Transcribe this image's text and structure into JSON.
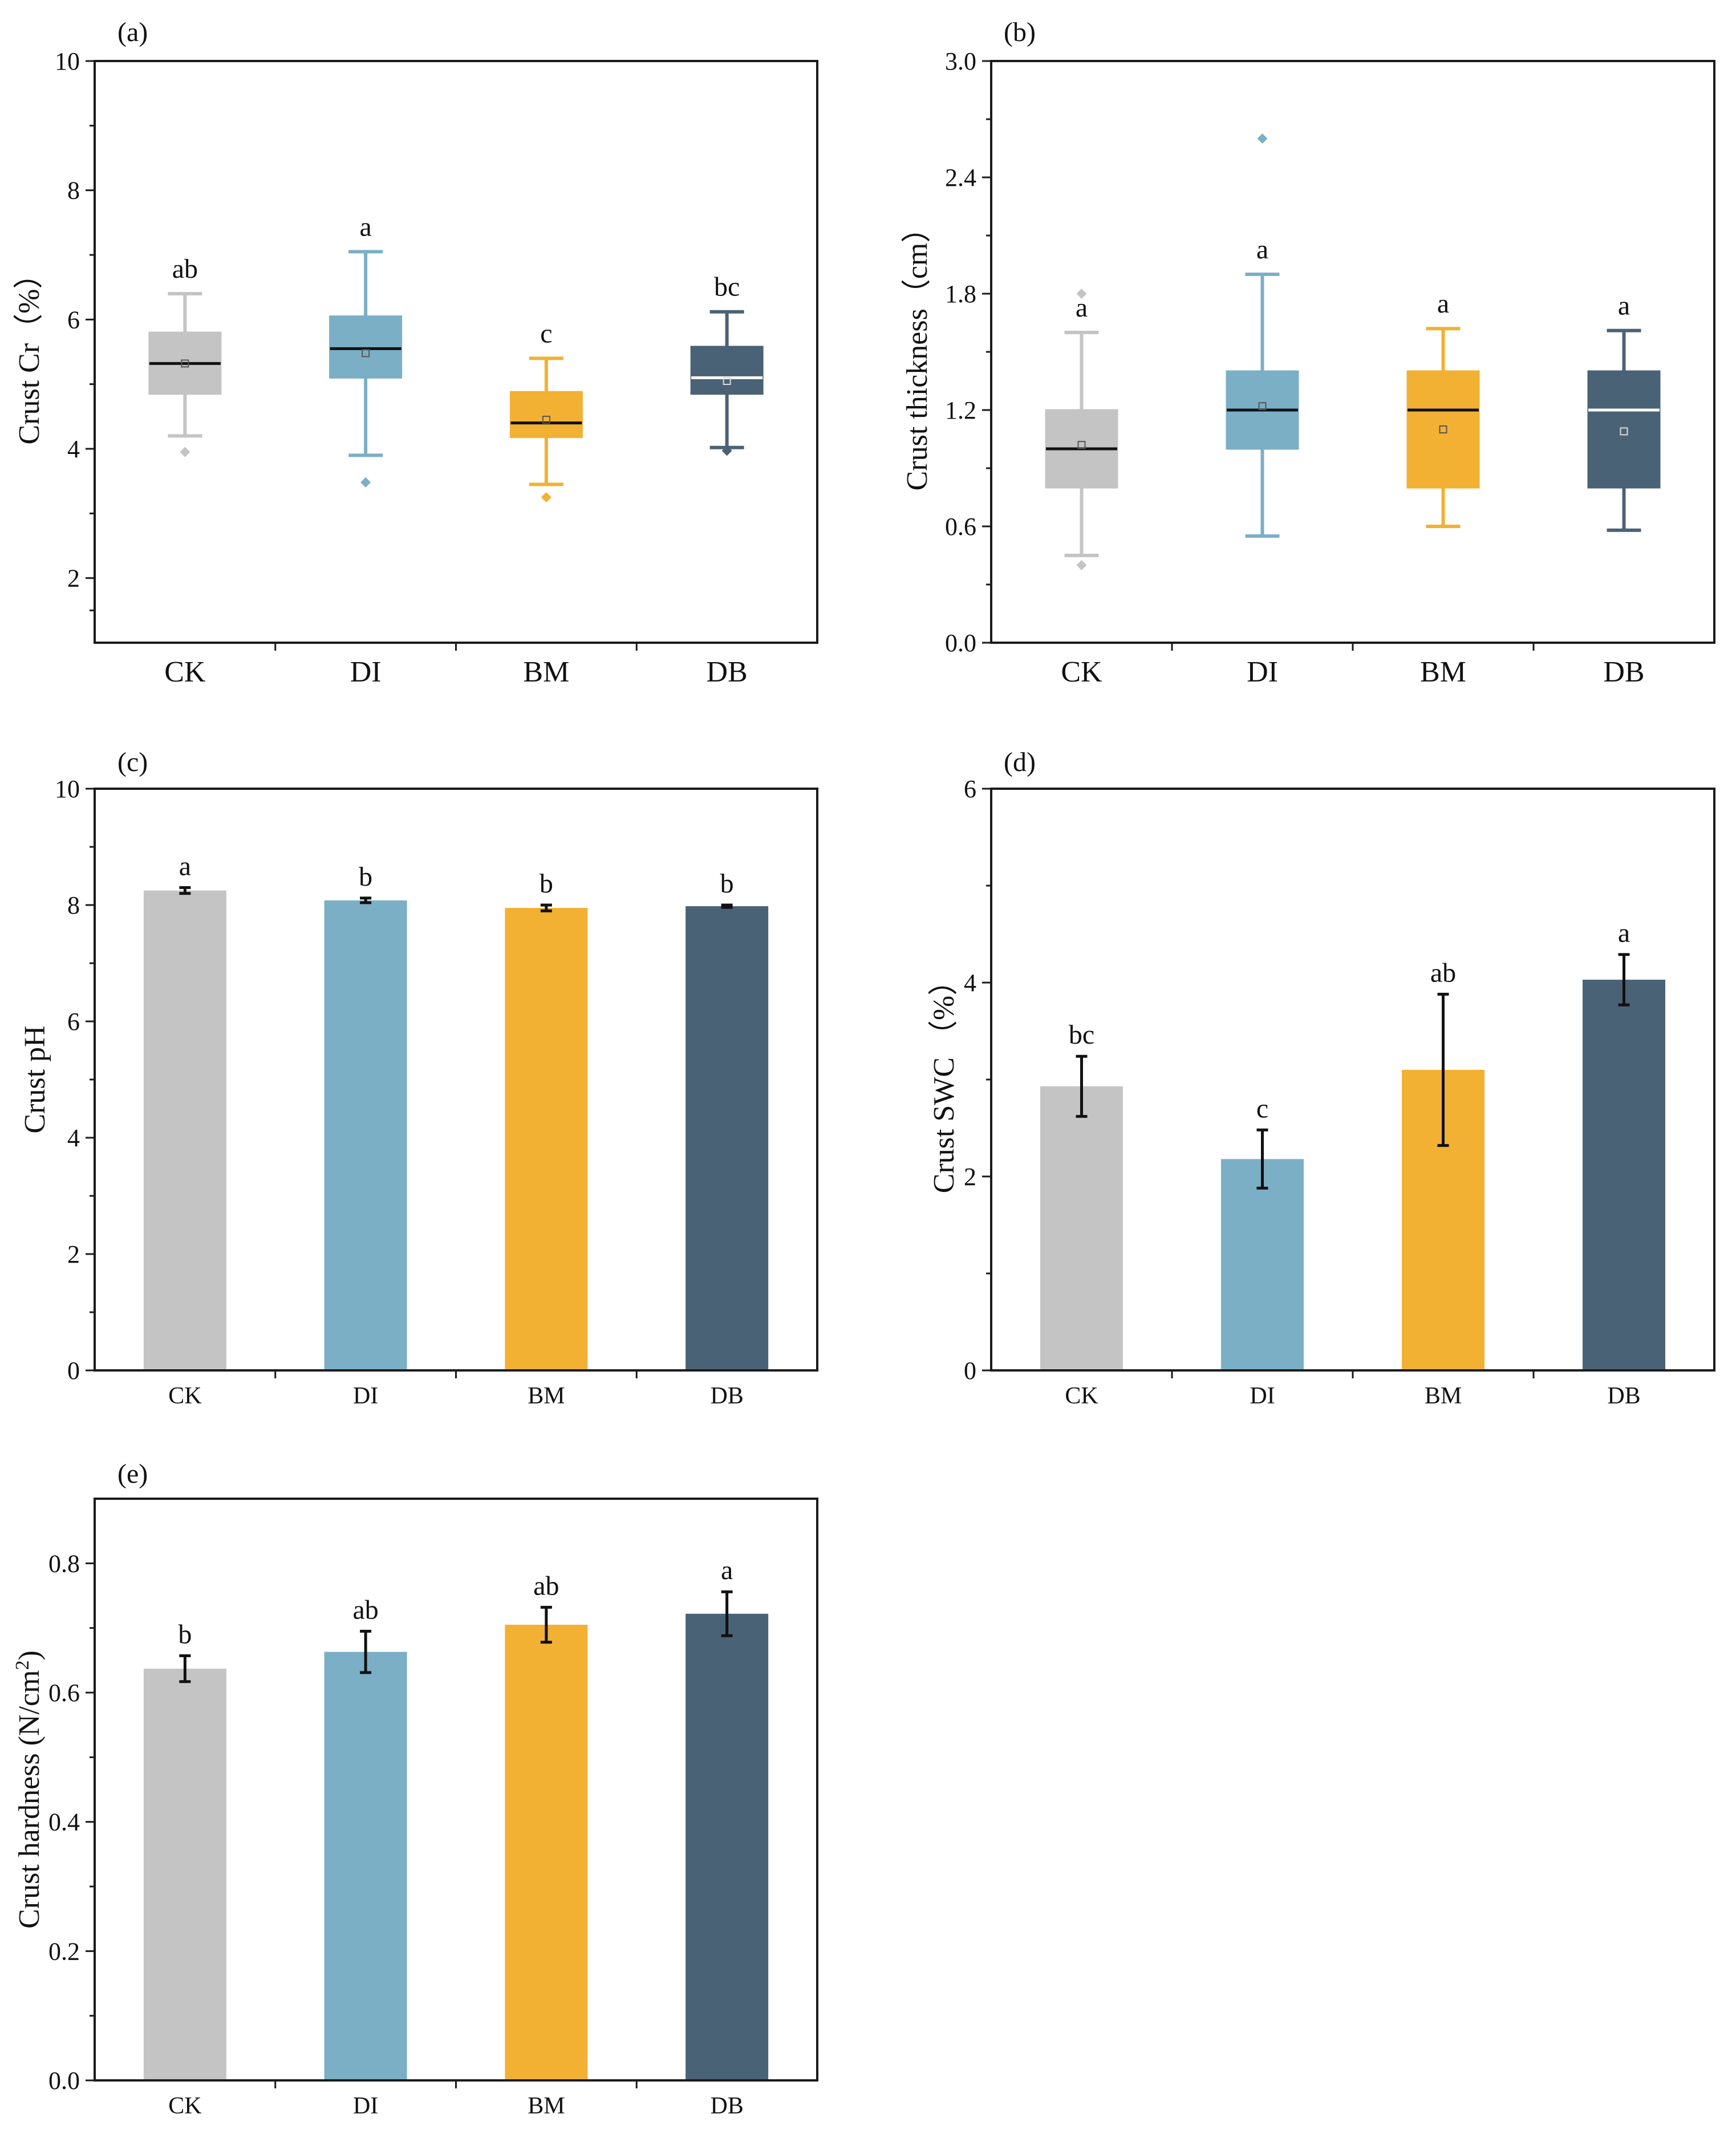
{
  "figure": {
    "colors": {
      "CK": "#c4c4c4",
      "DI": "#7bafc6",
      "BM": "#f2b133",
      "DB": "#4a6275",
      "frame": "#1a1a1a",
      "whisker_dark": "#111111"
    }
  },
  "chart_data": [
    {
      "panel": "(a)",
      "type": "box",
      "ylabel": "Crust Cr（%）",
      "ylim": [
        1,
        10
      ],
      "yticks": [
        2,
        4,
        6,
        8,
        10
      ],
      "categories": [
        "CK",
        "DI",
        "BM",
        "DB"
      ],
      "boxes": [
        {
          "category": "CK",
          "whisker_low": 4.2,
          "q1": 4.85,
          "median": 5.32,
          "q3": 5.8,
          "whisker_high": 6.4,
          "mean": 5.32,
          "outliers": [
            3.95
          ],
          "sig": "ab"
        },
        {
          "category": "DI",
          "whisker_low": 3.9,
          "q1": 5.1,
          "median": 5.55,
          "q3": 6.05,
          "whisker_high": 7.05,
          "mean": 5.48,
          "outliers": [
            3.48
          ],
          "sig": "a"
        },
        {
          "category": "BM",
          "whisker_low": 3.45,
          "q1": 4.18,
          "median": 4.4,
          "q3": 4.88,
          "whisker_high": 5.4,
          "mean": 4.45,
          "outliers": [
            3.25
          ],
          "sig": "c"
        },
        {
          "category": "DB",
          "whisker_low": 4.02,
          "q1": 4.85,
          "median": 5.1,
          "q3": 5.58,
          "whisker_high": 6.12,
          "mean": 5.05,
          "outliers": [
            3.97
          ],
          "sig": "bc"
        }
      ]
    },
    {
      "panel": "(b)",
      "type": "box",
      "ylabel": "Crust thickness（cm）",
      "ylim": [
        0,
        3.0
      ],
      "yticks": [
        "0.0",
        "0.6",
        "1.2",
        "1.8",
        "2.4",
        "3.0"
      ],
      "categories": [
        "CK",
        "DI",
        "BM",
        "DB"
      ],
      "boxes": [
        {
          "category": "CK",
          "whisker_low": 0.45,
          "q1": 0.8,
          "median": 1.0,
          "q3": 1.2,
          "whisker_high": 1.6,
          "mean": 1.02,
          "outliers": [
            0.4,
            1.8
          ],
          "sig": "a"
        },
        {
          "category": "DI",
          "whisker_low": 0.55,
          "q1": 1.0,
          "median": 1.2,
          "q3": 1.4,
          "whisker_high": 1.9,
          "mean": 1.22,
          "outliers": [
            2.6
          ],
          "sig": "a"
        },
        {
          "category": "BM",
          "whisker_low": 0.6,
          "q1": 0.8,
          "median": 1.2,
          "q3": 1.4,
          "whisker_high": 1.62,
          "mean": 1.1,
          "outliers": [],
          "sig": "a"
        },
        {
          "category": "DB",
          "whisker_low": 0.58,
          "q1": 0.8,
          "median": 1.2,
          "q3": 1.4,
          "whisker_high": 1.61,
          "mean": 1.09,
          "outliers": [],
          "sig": "a"
        }
      ]
    },
    {
      "panel": "(c)",
      "type": "bar",
      "ylabel": "Crust pH",
      "ylim": [
        0,
        10
      ],
      "yticks": [
        0,
        2,
        4,
        6,
        8,
        10
      ],
      "categories": [
        "CK",
        "DI",
        "BM",
        "DB"
      ],
      "values": [
        8.25,
        8.08,
        7.95,
        7.98
      ],
      "errors": [
        0.05,
        0.04,
        0.05,
        0.02
      ],
      "sig": [
        "a",
        "b",
        "b",
        "b"
      ]
    },
    {
      "panel": "(d)",
      "type": "bar",
      "ylabel": "Crust SWC （%）",
      "ylim": [
        0,
        6
      ],
      "yticks": [
        0,
        2,
        4,
        6
      ],
      "categories": [
        "CK",
        "DI",
        "BM",
        "DB"
      ],
      "values": [
        2.93,
        2.18,
        3.1,
        4.03
      ],
      "errors": [
        0.31,
        0.3,
        0.78,
        0.26
      ],
      "sig": [
        "bc",
        "c",
        "ab",
        "a"
      ]
    },
    {
      "panel": "(e)",
      "type": "bar",
      "ylabel": "Crust hardness (N/cm",
      "ylabel_sup": "2",
      "ylabel_end": ")",
      "ylim": [
        0,
        0.9
      ],
      "yticks": [
        "0.0",
        "0.2",
        "0.4",
        "0.6",
        "0.8"
      ],
      "categories": [
        "CK",
        "DI",
        "BM",
        "DB"
      ],
      "values": [
        0.637,
        0.663,
        0.705,
        0.722
      ],
      "errors": [
        0.02,
        0.032,
        0.027,
        0.034
      ],
      "sig": [
        "b",
        "ab",
        "ab",
        "a"
      ]
    }
  ]
}
